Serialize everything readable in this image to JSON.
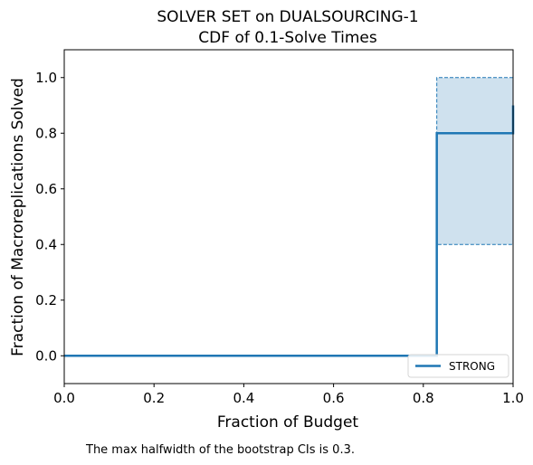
{
  "chart_data": {
    "type": "line",
    "title_line1": "SOLVER SET on DUALSOURCING-1",
    "title_line2": "CDF of 0.1-Solve Times",
    "xlabel": "Fraction of Budget",
    "ylabel": "Fraction of Macroreplications Solved",
    "xlim": [
      0.0,
      1.0
    ],
    "ylim": [
      -0.1,
      1.1
    ],
    "xticks": [
      0.0,
      0.2,
      0.4,
      0.6,
      0.8,
      1.0
    ],
    "xtick_labels": [
      "0.0",
      "0.2",
      "0.4",
      "0.6",
      "0.8",
      "1.0"
    ],
    "yticks": [
      0.0,
      0.2,
      0.4,
      0.6,
      0.8,
      1.0
    ],
    "ytick_labels": [
      "0.0",
      "0.2",
      "0.4",
      "0.6",
      "0.8",
      "1.0"
    ],
    "grid": false,
    "legend_position": "lower-right",
    "series": [
      {
        "name": "STRONG",
        "color": "#1f77b4",
        "x": [
          0.0,
          0.83,
          0.83,
          1.0,
          1.0
        ],
        "y": [
          0.0,
          0.0,
          0.8,
          0.8,
          0.9
        ],
        "ci": {
          "x": [
            0.83,
            1.0
          ],
          "lower": 0.4,
          "upper": 1.0,
          "fill_color": "#cfe1ee"
        }
      }
    ],
    "footnote": "The max halfwidth of the bootstrap CIs is 0.3."
  }
}
